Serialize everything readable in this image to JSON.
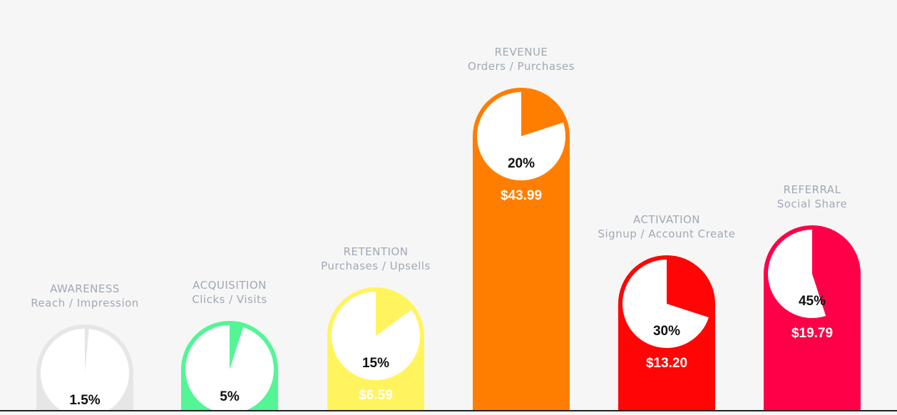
{
  "chart_data": {
    "type": "bar",
    "categories": [
      {
        "title": "AWARENESS",
        "subtitle": "Reach / Impression",
        "percent_label": "1.5%",
        "percent": 1.5,
        "value_label": "",
        "color": "#e6e6e6"
      },
      {
        "title": "ACQUISITION",
        "subtitle": "Clicks / Visits",
        "percent_label": "5%",
        "percent": 5,
        "value_label": "",
        "color": "#54f596"
      },
      {
        "title": "RETENTION",
        "subtitle": "Purchases / Upsells",
        "percent_label": "15%",
        "percent": 15,
        "value_label": "$6.59",
        "color": "#fff45e"
      },
      {
        "title": "REVENUE",
        "subtitle": "Orders / Purchases",
        "percent_label": "20%",
        "percent": 20,
        "value_label": "$43.99",
        "color": "#ff7e00"
      },
      {
        "title": "ACTIVATION",
        "subtitle": "Signup / Account Create",
        "percent_label": "30%",
        "percent": 30,
        "value_label": "$13.20",
        "color": "#ff0505"
      },
      {
        "title": "REFERRAL",
        "subtitle": "Social Share",
        "percent_label": "45%",
        "percent": 45,
        "value_label": "$19.79",
        "color": "#ff0048"
      }
    ],
    "series": [
      {
        "values": [
          1.5,
          5,
          15,
          20,
          30,
          45
        ]
      }
    ],
    "values_usd": [
      null,
      null,
      6.59,
      43.99,
      13.2,
      19.79
    ],
    "grid": false,
    "legend": "none"
  },
  "colors": {
    "background": "#f6f6f6",
    "label_text": "#a0a8b6",
    "percent_text": "#111111",
    "value_text": "#ffffff",
    "pie_fill": "#ffffff",
    "baseline": "#222222"
  }
}
